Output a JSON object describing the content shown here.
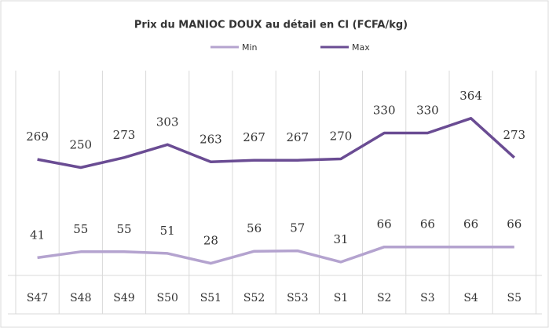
{
  "chart_data": {
    "type": "line",
    "title": "Prix du MANIOC DOUX  au détail en CI (FCFA/kg)",
    "categories": [
      "S47",
      "S48",
      "S49",
      "S50",
      "S51",
      "S52",
      "S53",
      "S1",
      "S2",
      "S3",
      "S4",
      "S5"
    ],
    "series": [
      {
        "name": "Min",
        "color": "#b4a3cf",
        "values": [
          41,
          55,
          55,
          51,
          28,
          56,
          57,
          31,
          66,
          66,
          66,
          66
        ]
      },
      {
        "name": "Max",
        "color": "#6a4c93",
        "values": [
          269,
          250,
          273,
          303,
          263,
          267,
          267,
          270,
          330,
          330,
          364,
          273
        ]
      }
    ],
    "ylim": [
      0,
      460
    ]
  }
}
